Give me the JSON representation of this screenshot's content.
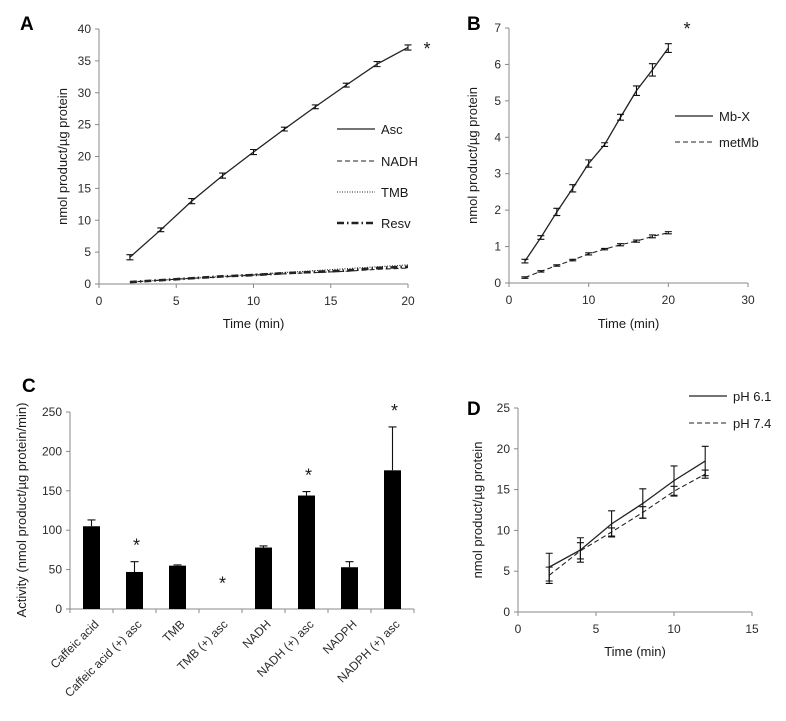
{
  "chart_data": [
    {
      "panel": "A",
      "type": "line",
      "xlabel": "Time (min)",
      "ylabel": "nmol product/µg protein",
      "xlim": [
        0,
        20
      ],
      "ylim": [
        0,
        40
      ],
      "xticks": [
        0,
        5,
        10,
        15,
        20
      ],
      "yticks": [
        0,
        5,
        10,
        15,
        20,
        25,
        30,
        35,
        40
      ],
      "legend_position": "center-right",
      "annotation": "*",
      "x": [
        2,
        4,
        6,
        8,
        10,
        12,
        14,
        16,
        18,
        20
      ],
      "series": [
        {
          "name": "Asc",
          "style": "solid",
          "values": [
            4.2,
            8.5,
            13.0,
            17.0,
            20.7,
            24.3,
            27.8,
            31.2,
            34.5,
            37.1
          ],
          "errors": [
            0.4,
            0.3,
            0.4,
            0.4,
            0.4,
            0.3,
            0.3,
            0.3,
            0.4,
            0.4
          ]
        },
        {
          "name": "NADH",
          "style": "dashed",
          "values": [
            0.3,
            0.6,
            0.9,
            1.1,
            1.4,
            1.6,
            1.8,
            2.0,
            2.3,
            2.5
          ]
        },
        {
          "name": "TMB",
          "style": "dotted",
          "values": [
            0.3,
            0.6,
            0.9,
            1.2,
            1.5,
            1.8,
            2.1,
            2.4,
            2.7,
            3.0
          ]
        },
        {
          "name": "Resv",
          "style": "dashdot",
          "values": [
            0.3,
            0.6,
            0.9,
            1.2,
            1.4,
            1.7,
            1.9,
            2.1,
            2.5,
            2.7
          ]
        }
      ]
    },
    {
      "panel": "B",
      "type": "line",
      "xlabel": "Time (min)",
      "ylabel": "nmol product/µg protein",
      "xlim": [
        0,
        30
      ],
      "ylim": [
        0,
        7
      ],
      "xticks": [
        0,
        10,
        20,
        30
      ],
      "yticks": [
        0,
        1,
        2,
        3,
        4,
        5,
        6,
        7
      ],
      "legend_position": "center-right",
      "annotation": "*",
      "x": [
        2,
        4,
        6,
        8,
        10,
        12,
        14,
        16,
        18,
        20
      ],
      "series": [
        {
          "name": "Mb-X",
          "style": "solid",
          "values": [
            0.6,
            1.25,
            1.95,
            2.6,
            3.28,
            3.8,
            4.55,
            5.28,
            5.85,
            6.45
          ],
          "errors": [
            0.05,
            0.05,
            0.1,
            0.1,
            0.1,
            0.05,
            0.08,
            0.13,
            0.17,
            0.12
          ]
        },
        {
          "name": "metMb",
          "style": "dashed",
          "values": [
            0.15,
            0.32,
            0.48,
            0.63,
            0.8,
            0.93,
            1.05,
            1.15,
            1.28,
            1.38
          ],
          "errors": [
            0.02,
            0.02,
            0.02,
            0.02,
            0.03,
            0.02,
            0.03,
            0.03,
            0.04,
            0.03
          ]
        }
      ]
    },
    {
      "panel": "C",
      "type": "bar",
      "ylabel": "Activity (nmol product/µg protein/min)",
      "ylim": [
        0,
        250
      ],
      "yticks": [
        0,
        50,
        100,
        150,
        200,
        250
      ],
      "categories": [
        "Caffeic acid",
        "Caffeic acid (+) asc",
        "TMB",
        "TMB (+) asc",
        "NADH",
        "NADH (+) asc",
        "NADPH",
        "NADPH (+) asc"
      ],
      "values": [
        105,
        47,
        55,
        0,
        78,
        144,
        53,
        176
      ],
      "errors": [
        8,
        13,
        1,
        0,
        2,
        5,
        7,
        55
      ],
      "significance": [
        "",
        "*",
        "",
        "*",
        "",
        "*",
        "",
        "*"
      ]
    },
    {
      "panel": "D",
      "type": "line",
      "xlabel": "Time (min)",
      "ylabel": "nmol product/µg  protein",
      "xlim": [
        0,
        15
      ],
      "ylim": [
        0,
        25
      ],
      "xticks": [
        0,
        5,
        10,
        15
      ],
      "yticks": [
        0,
        5,
        10,
        15,
        20,
        25
      ],
      "legend_position": "top-right",
      "x": [
        2,
        4,
        6,
        8,
        10,
        12
      ],
      "series": [
        {
          "name": "pH 6.1",
          "style": "solid",
          "values": [
            5.5,
            7.6,
            10.8,
            13.3,
            16.1,
            18.5
          ],
          "errors": [
            1.7,
            1.5,
            1.6,
            1.8,
            1.8,
            1.8
          ]
        },
        {
          "name": "pH 7.4",
          "style": "dashed",
          "values": [
            4.5,
            7.5,
            9.8,
            12.2,
            14.8,
            16.9
          ],
          "errors": [
            1.0,
            1.0,
            0.5,
            0.7,
            0.6,
            0.5
          ]
        }
      ]
    }
  ]
}
